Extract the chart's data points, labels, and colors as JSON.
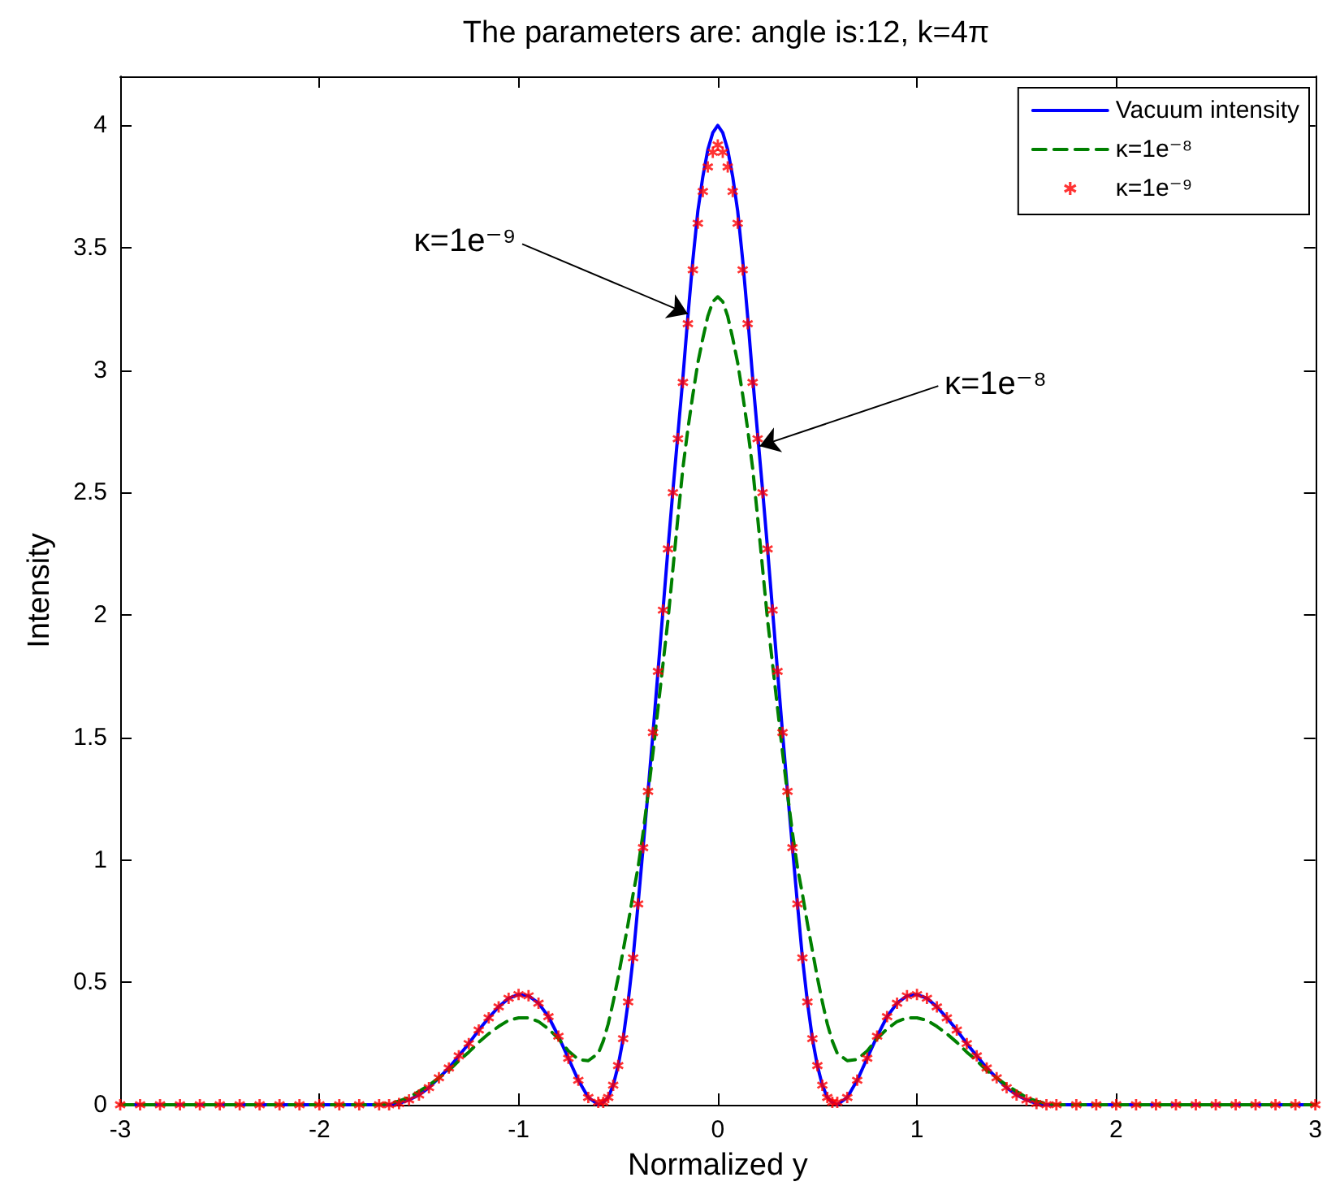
{
  "chart_data": {
    "type": "line",
    "title": "The parameters are: angle is:12, k=4π",
    "xlabel": "Normalized y",
    "ylabel": "Intensity",
    "x": [
      -3,
      -2.9,
      -2.8,
      -2.7,
      -2.6,
      -2.5,
      -2.4,
      -2.3,
      -2.2,
      -2.1,
      -2,
      -1.9,
      -1.8,
      -1.7,
      -1.65,
      -1.6,
      -1.55,
      -1.5,
      -1.45,
      -1.4,
      -1.35,
      -1.3,
      -1.25,
      -1.2,
      -1.15,
      -1.1,
      -1.05,
      -1,
      -0.95,
      -0.9,
      -0.85,
      -0.8,
      -0.75,
      -0.7,
      -0.65,
      -0.6,
      -0.575,
      -0.55,
      -0.525,
      -0.5,
      -0.475,
      -0.45,
      -0.425,
      -0.4,
      -0.375,
      -0.35,
      -0.325,
      -0.3,
      -0.275,
      -0.25,
      -0.225,
      -0.2,
      -0.175,
      -0.15,
      -0.125,
      -0.1,
      -0.075,
      -0.05,
      -0.025,
      0,
      0.025,
      0.05,
      0.075,
      0.1,
      0.125,
      0.15,
      0.175,
      0.2,
      0.225,
      0.25,
      0.275,
      0.3,
      0.325,
      0.35,
      0.375,
      0.4,
      0.425,
      0.45,
      0.475,
      0.5,
      0.525,
      0.55,
      0.575,
      0.6,
      0.65,
      0.7,
      0.75,
      0.8,
      0.85,
      0.9,
      0.95,
      1,
      1.05,
      1.1,
      1.15,
      1.2,
      1.25,
      1.3,
      1.35,
      1.4,
      1.45,
      1.5,
      1.55,
      1.6,
      1.65,
      1.7,
      1.8,
      1.9,
      2,
      2.1,
      2.2,
      2.3,
      2.4,
      2.5,
      2.6,
      2.7,
      2.8,
      2.9,
      3
    ],
    "series": [
      {
        "name": "Vacuum intensity",
        "color": "#0000ff",
        "values": [
          0,
          0,
          0,
          0,
          0,
          0,
          0,
          0,
          0,
          0,
          0,
          0,
          0,
          0,
          0,
          0.005,
          0.02,
          0.04,
          0.07,
          0.11,
          0.15,
          0.2,
          0.25,
          0.305,
          0.355,
          0.4,
          0.435,
          0.45,
          0.445,
          0.415,
          0.36,
          0.28,
          0.19,
          0.1,
          0.03,
          0,
          0.01,
          0.03,
          0.08,
          0.16,
          0.27,
          0.42,
          0.6,
          0.82,
          1.05,
          1.28,
          1.52,
          1.77,
          2.02,
          2.27,
          2.51,
          2.74,
          2.97,
          3.22,
          3.45,
          3.65,
          3.79,
          3.9,
          3.97,
          4,
          3.97,
          3.9,
          3.79,
          3.65,
          3.45,
          3.22,
          2.97,
          2.74,
          2.51,
          2.27,
          2.02,
          1.77,
          1.52,
          1.28,
          1.05,
          0.82,
          0.6,
          0.42,
          0.27,
          0.16,
          0.08,
          0.03,
          0.01,
          0,
          0.03,
          0.1,
          0.19,
          0.28,
          0.36,
          0.415,
          0.445,
          0.45,
          0.435,
          0.4,
          0.355,
          0.305,
          0.25,
          0.2,
          0.15,
          0.11,
          0.07,
          0.04,
          0.02,
          0.005,
          0,
          0,
          0,
          0,
          0,
          0,
          0,
          0,
          0,
          0,
          0,
          0,
          0,
          0,
          0
        ]
      },
      {
        "name": "κ=1e⁻⁸",
        "color": "#008000",
        "line_style": "dashed",
        "values": [
          0,
          0,
          0,
          0,
          0,
          0,
          0,
          0,
          0,
          0,
          0,
          0,
          0,
          0,
          0.005,
          0.015,
          0.03,
          0.055,
          0.08,
          0.11,
          0.14,
          0.18,
          0.215,
          0.255,
          0.29,
          0.32,
          0.345,
          0.355,
          0.355,
          0.34,
          0.31,
          0.27,
          0.22,
          0.185,
          0.18,
          0.21,
          0.26,
          0.33,
          0.42,
          0.52,
          0.63,
          0.74,
          0.86,
          0.97,
          1.11,
          1.27,
          1.44,
          1.62,
          1.8,
          1.98,
          2.19,
          2.4,
          2.6,
          2.76,
          2.9,
          3.03,
          3.13,
          3.22,
          3.28,
          3.3,
          3.28,
          3.22,
          3.13,
          3.03,
          2.9,
          2.76,
          2.6,
          2.4,
          2.19,
          1.98,
          1.8,
          1.62,
          1.44,
          1.27,
          1.11,
          0.97,
          0.86,
          0.74,
          0.63,
          0.52,
          0.42,
          0.33,
          0.26,
          0.21,
          0.18,
          0.185,
          0.22,
          0.27,
          0.31,
          0.34,
          0.355,
          0.355,
          0.345,
          0.32,
          0.29,
          0.255,
          0.215,
          0.18,
          0.14,
          0.11,
          0.08,
          0.055,
          0.03,
          0.015,
          0.005,
          0,
          0,
          0,
          0,
          0,
          0,
          0,
          0,
          0,
          0,
          0,
          0,
          0,
          0
        ]
      },
      {
        "name": "κ=1e⁻⁹",
        "type": "scatter",
        "marker": "star",
        "color": "#ff0000",
        "values": [
          0,
          0,
          0,
          0,
          0,
          0,
          0,
          0,
          0,
          0,
          0,
          0,
          0,
          0,
          0,
          0.005,
          0.02,
          0.04,
          0.07,
          0.11,
          0.15,
          0.2,
          0.25,
          0.305,
          0.355,
          0.4,
          0.435,
          0.45,
          0.445,
          0.415,
          0.36,
          0.28,
          0.19,
          0.1,
          0.03,
          0.01,
          0.01,
          0.03,
          0.08,
          0.16,
          0.27,
          0.42,
          0.6,
          0.82,
          1.05,
          1.28,
          1.52,
          1.77,
          2.02,
          2.27,
          2.5,
          2.72,
          2.95,
          3.19,
          3.41,
          3.6,
          3.73,
          3.83,
          3.89,
          3.92,
          3.89,
          3.83,
          3.73,
          3.6,
          3.41,
          3.19,
          2.95,
          2.72,
          2.5,
          2.27,
          2.02,
          1.77,
          1.52,
          1.28,
          1.05,
          0.82,
          0.6,
          0.42,
          0.27,
          0.16,
          0.08,
          0.03,
          0.01,
          0.01,
          0.03,
          0.1,
          0.19,
          0.28,
          0.36,
          0.415,
          0.445,
          0.45,
          0.435,
          0.4,
          0.355,
          0.305,
          0.25,
          0.2,
          0.15,
          0.11,
          0.07,
          0.04,
          0.02,
          0.005,
          0,
          0,
          0,
          0,
          0,
          0,
          0,
          0,
          0,
          0,
          0,
          0,
          0,
          0,
          0
        ]
      }
    ],
    "xlim": [
      -3,
      3
    ],
    "xticks": [
      -3,
      -2,
      -1,
      0,
      1,
      2,
      3
    ],
    "ylim": [
      0,
      4.2
    ],
    "yticks": [
      0,
      0.5,
      1,
      1.5,
      2,
      2.5,
      3,
      3.5,
      4
    ],
    "grid": false,
    "legend": "top right",
    "annotations": [
      {
        "text": "κ=1e⁻⁹",
        "x": -0.15,
        "y": 3.23
      },
      {
        "text": "κ=1e⁻⁸",
        "x": 0.21,
        "y": 2.69
      }
    ]
  }
}
